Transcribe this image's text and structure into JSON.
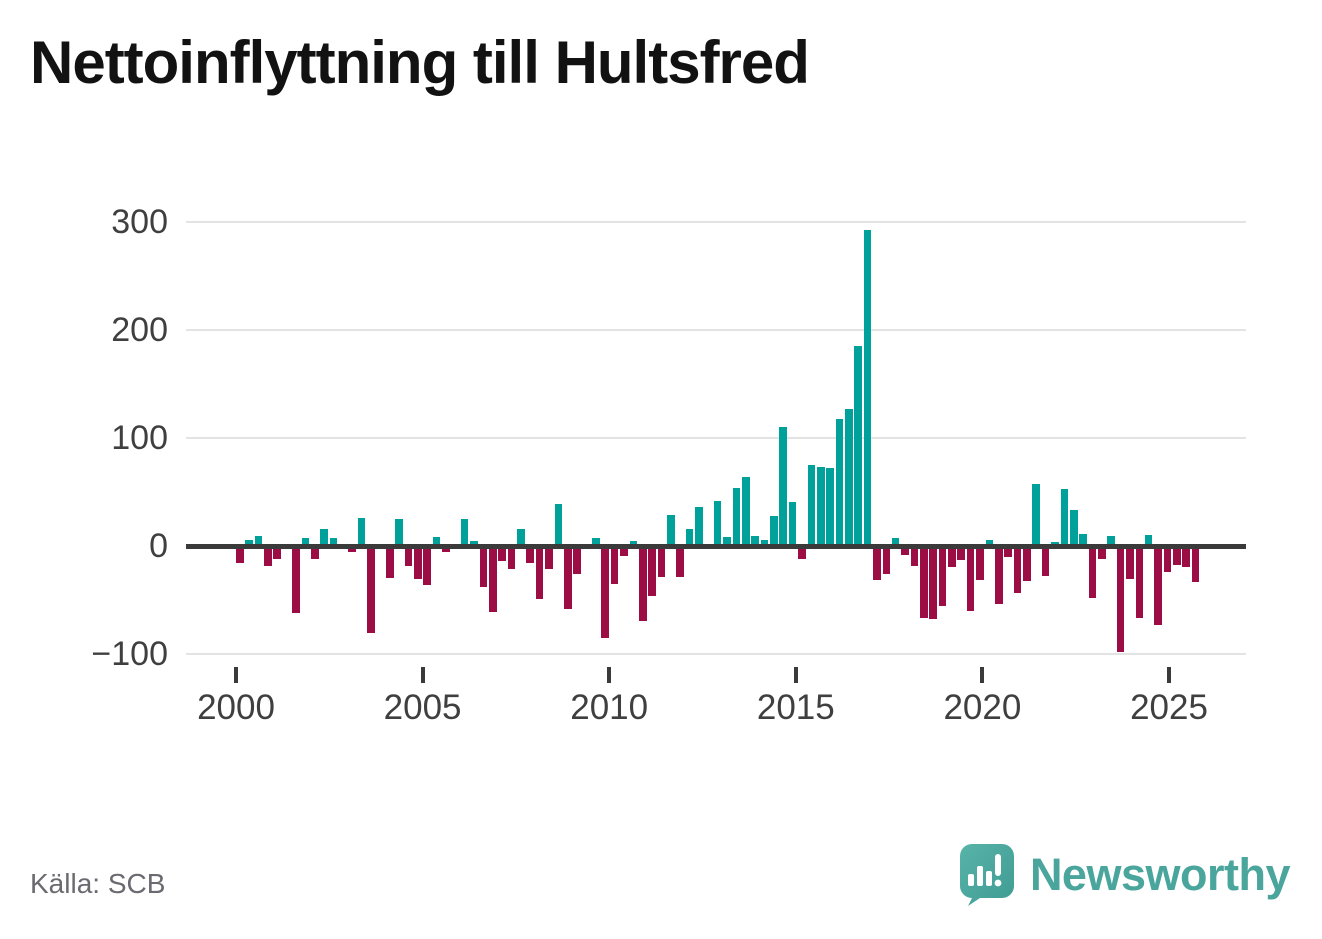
{
  "title": "Nettoinflyttning till Hultsfred",
  "source": "Källa: SCB",
  "branding": {
    "name": "Newsworthy",
    "logo_icon": "newsworthy-speech-bubble-barchart-icon"
  },
  "colors": {
    "positive_bar": "#00a19a",
    "negative_bar": "#9c0d46",
    "zero_line": "#3a3a3a",
    "gridline": "#e3e3e3",
    "title_text": "#121212",
    "axis_text": "#3f3f3f",
    "source_text": "#6a6a70",
    "brand_teal": "#4aa69d"
  },
  "chart_data": {
    "type": "bar",
    "title": "Nettoinflyttning till Hultsfred",
    "xlabel": "",
    "ylabel": "",
    "frequency": "quarterly",
    "x_start": "2000-Q1",
    "x_end": "2025-Q3",
    "x_tick_labels": [
      "2000",
      "2005",
      "2010",
      "2015",
      "2020",
      "2025"
    ],
    "y_ticks": [
      300,
      200,
      100,
      0,
      -100
    ],
    "y_tick_labels": [
      "300",
      "200",
      "100",
      "0",
      "−100"
    ],
    "ylim": [
      -130,
      320
    ],
    "grid": "horizontal",
    "legend": "none",
    "series": [
      {
        "name": "Nettoinflyttning",
        "values": [
          -13,
          6,
          9,
          -16,
          -10,
          0,
          -60,
          7,
          -10,
          16,
          7,
          0,
          -3,
          26,
          -78,
          0,
          -27,
          25,
          -16,
          -28,
          -34,
          8,
          -3,
          0,
          25,
          5,
          -36,
          -59,
          -12,
          -19,
          16,
          -13,
          -47,
          -19,
          39,
          -56,
          -24,
          0,
          7,
          -83,
          -33,
          -7,
          5,
          -67,
          -44,
          -26,
          29,
          -26,
          16,
          36,
          0,
          42,
          8,
          54,
          64,
          9,
          6,
          28,
          110,
          41,
          -10,
          75,
          73,
          72,
          118,
          127,
          185,
          293,
          -29,
          -24,
          7,
          -6,
          -16,
          -64,
          -65,
          -53,
          -17,
          -11,
          -58,
          -29,
          6,
          -51,
          -8,
          -41,
          -30,
          57,
          -25,
          4,
          53,
          33,
          11,
          -46,
          -10,
          9,
          -96,
          -28,
          -64,
          10,
          -71,
          -22,
          -15,
          -17,
          -31
        ]
      }
    ]
  }
}
